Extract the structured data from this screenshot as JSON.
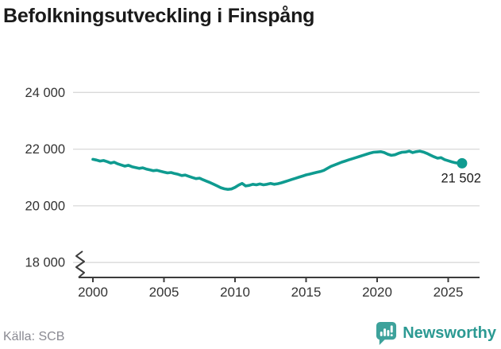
{
  "header": {
    "title": "Befolkningsutveckling i Finspång"
  },
  "footer": {
    "source": "Källa: SCB",
    "brand": "Newsworthy"
  },
  "colors": {
    "line": "#0f9b90",
    "grid": "#d9d9d9",
    "axis": "#3c3c3c",
    "tick_label": "#333333",
    "title": "#1a1a1a",
    "value_label": "#1a1a1a",
    "source_text": "#8a8a92",
    "brand_teal": "#2c9a93",
    "brand_icon": "#3da29b"
  },
  "chart_data": {
    "type": "line",
    "title": "Befolkningsutveckling i Finspång",
    "source": "Källa: SCB",
    "grid": "horizontal-only",
    "axis_break": true,
    "xlim": [
      1999,
      2027.2
    ],
    "ylim_displayed": [
      17800,
      24400
    ],
    "yticks": [
      {
        "value": 24000,
        "label": "24 000"
      },
      {
        "value": 22000,
        "label": "22 000"
      },
      {
        "value": 20000,
        "label": "20 000"
      },
      {
        "value": 18000,
        "label": "18 000"
      }
    ],
    "xticks": [
      {
        "value": 2000,
        "label": "2000"
      },
      {
        "value": 2005,
        "label": "2005"
      },
      {
        "value": 2010,
        "label": "2010"
      },
      {
        "value": 2015,
        "label": "2015"
      },
      {
        "value": 2020,
        "label": "2020"
      },
      {
        "value": 2025,
        "label": "2025"
      }
    ],
    "end_label": "21 502",
    "end_value": 21502,
    "series": [
      {
        "name": "Befolkning",
        "points": [
          [
            2000.0,
            21640
          ],
          [
            2000.25,
            21615
          ],
          [
            2000.5,
            21580
          ],
          [
            2000.75,
            21600
          ],
          [
            2001.0,
            21560
          ],
          [
            2001.25,
            21510
          ],
          [
            2001.5,
            21540
          ],
          [
            2001.75,
            21480
          ],
          [
            2002.0,
            21440
          ],
          [
            2002.25,
            21400
          ],
          [
            2002.5,
            21430
          ],
          [
            2002.75,
            21380
          ],
          [
            2003.0,
            21350
          ],
          [
            2003.25,
            21320
          ],
          [
            2003.5,
            21340
          ],
          [
            2003.75,
            21300
          ],
          [
            2004.0,
            21270
          ],
          [
            2004.25,
            21240
          ],
          [
            2004.5,
            21255
          ],
          [
            2004.75,
            21220
          ],
          [
            2005.0,
            21190
          ],
          [
            2005.25,
            21160
          ],
          [
            2005.5,
            21175
          ],
          [
            2005.75,
            21140
          ],
          [
            2006.0,
            21110
          ],
          [
            2006.25,
            21070
          ],
          [
            2006.5,
            21085
          ],
          [
            2006.75,
            21040
          ],
          [
            2007.0,
            21000
          ],
          [
            2007.25,
            20960
          ],
          [
            2007.5,
            20975
          ],
          [
            2007.75,
            20920
          ],
          [
            2008.0,
            20870
          ],
          [
            2008.25,
            20820
          ],
          [
            2008.5,
            20760
          ],
          [
            2008.75,
            20700
          ],
          [
            2009.0,
            20640
          ],
          [
            2009.25,
            20600
          ],
          [
            2009.5,
            20580
          ],
          [
            2009.75,
            20595
          ],
          [
            2010.0,
            20650
          ],
          [
            2010.25,
            20730
          ],
          [
            2010.5,
            20790
          ],
          [
            2010.75,
            20700
          ],
          [
            2011.0,
            20720
          ],
          [
            2011.25,
            20760
          ],
          [
            2011.5,
            20740
          ],
          [
            2011.75,
            20770
          ],
          [
            2012.0,
            20740
          ],
          [
            2012.25,
            20760
          ],
          [
            2012.5,
            20790
          ],
          [
            2012.75,
            20760
          ],
          [
            2013.0,
            20780
          ],
          [
            2013.25,
            20810
          ],
          [
            2013.5,
            20850
          ],
          [
            2013.75,
            20890
          ],
          [
            2014.0,
            20930
          ],
          [
            2014.25,
            20970
          ],
          [
            2014.5,
            21010
          ],
          [
            2014.75,
            21050
          ],
          [
            2015.0,
            21090
          ],
          [
            2015.25,
            21120
          ],
          [
            2015.5,
            21150
          ],
          [
            2015.75,
            21180
          ],
          [
            2016.0,
            21210
          ],
          [
            2016.25,
            21250
          ],
          [
            2016.5,
            21320
          ],
          [
            2016.75,
            21390
          ],
          [
            2017.0,
            21440
          ],
          [
            2017.25,
            21490
          ],
          [
            2017.5,
            21540
          ],
          [
            2017.75,
            21580
          ],
          [
            2018.0,
            21620
          ],
          [
            2018.25,
            21660
          ],
          [
            2018.5,
            21700
          ],
          [
            2018.75,
            21740
          ],
          [
            2019.0,
            21780
          ],
          [
            2019.25,
            21820
          ],
          [
            2019.5,
            21860
          ],
          [
            2019.75,
            21890
          ],
          [
            2020.0,
            21900
          ],
          [
            2020.25,
            21910
          ],
          [
            2020.5,
            21880
          ],
          [
            2020.75,
            21820
          ],
          [
            2021.0,
            21780
          ],
          [
            2021.25,
            21800
          ],
          [
            2021.5,
            21850
          ],
          [
            2021.75,
            21890
          ],
          [
            2022.0,
            21900
          ],
          [
            2022.25,
            21930
          ],
          [
            2022.5,
            21880
          ],
          [
            2022.75,
            21910
          ],
          [
            2023.0,
            21930
          ],
          [
            2023.25,
            21900
          ],
          [
            2023.5,
            21850
          ],
          [
            2023.75,
            21790
          ],
          [
            2024.0,
            21730
          ],
          [
            2024.25,
            21680
          ],
          [
            2024.5,
            21700
          ],
          [
            2024.75,
            21630
          ],
          [
            2025.0,
            21590
          ],
          [
            2025.25,
            21550
          ],
          [
            2025.5,
            21520
          ],
          [
            2025.75,
            21502
          ]
        ]
      }
    ]
  }
}
